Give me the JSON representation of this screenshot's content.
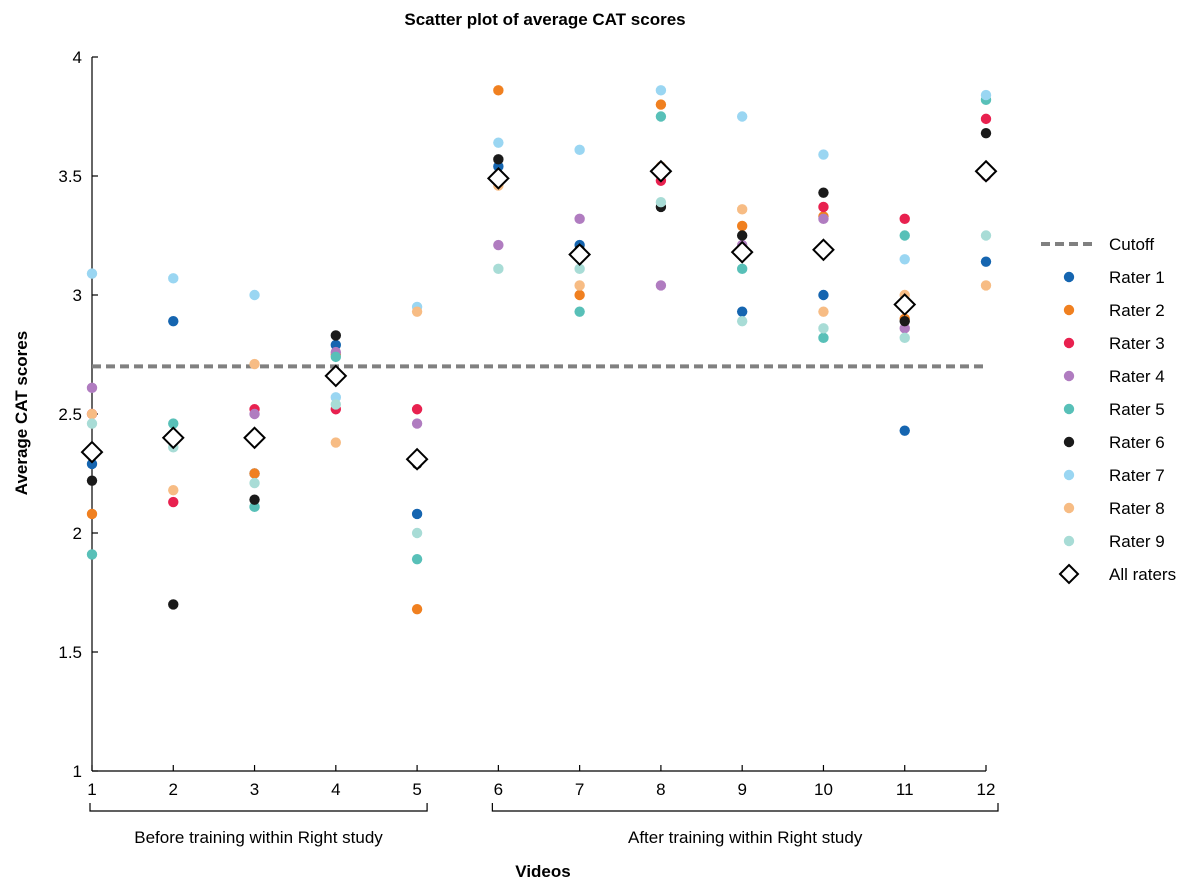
{
  "chart_data": {
    "type": "scatter",
    "title": "Scatter plot of average CAT scores",
    "xlabel": "Videos",
    "ylabel": "Average CAT scores",
    "x": [
      1,
      2,
      3,
      4,
      5,
      6,
      7,
      8,
      9,
      10,
      11,
      12
    ],
    "xticks": [
      "1",
      "2",
      "3",
      "4",
      "5",
      "6",
      "7",
      "8",
      "9",
      "10",
      "11",
      "12"
    ],
    "yticks": [
      "1",
      "1.5",
      "2",
      "2.5",
      "3",
      "3.5",
      "4"
    ],
    "xlim": [
      1,
      12
    ],
    "ylim": [
      1,
      4
    ],
    "grid": false,
    "legend_position": "right",
    "cutoff": {
      "name": "Cutoff",
      "value": 2.7,
      "color": "#808080"
    },
    "groups": [
      {
        "label": "Before training within Right study",
        "from": 1,
        "to": 5
      },
      {
        "label": "After training within Right study",
        "from": 6,
        "to": 12
      }
    ],
    "series": [
      {
        "name": "Rater 1",
        "color": "#1565B0",
        "values": [
          2.29,
          2.89,
          2.25,
          2.79,
          2.08,
          3.54,
          3.21,
          3.52,
          2.93,
          3.0,
          2.43,
          3.14
        ]
      },
      {
        "name": "Rater 2",
        "color": "#F08020",
        "values": [
          2.08,
          2.41,
          2.25,
          2.75,
          1.68,
          3.86,
          3.0,
          3.8,
          3.29,
          3.33,
          2.9,
          3.5
        ]
      },
      {
        "name": "Rater 3",
        "color": "#E8214F",
        "values": [
          2.5,
          2.13,
          2.52,
          2.52,
          2.52,
          3.5,
          3.18,
          3.48,
          3.18,
          3.37,
          3.32,
          3.74
        ]
      },
      {
        "name": "Rater 4",
        "color": "#B07CC0",
        "values": [
          2.61,
          2.4,
          2.5,
          2.76,
          2.46,
          3.21,
          3.32,
          3.04,
          3.21,
          3.32,
          2.86,
          3.5
        ]
      },
      {
        "name": "Rater 5",
        "color": "#58C0B8",
        "values": [
          1.91,
          2.46,
          2.11,
          2.74,
          1.89,
          3.5,
          2.93,
          3.75,
          3.11,
          2.82,
          3.25,
          3.82
        ]
      },
      {
        "name": "Rater 6",
        "color": "#1A1A1A",
        "values": [
          2.22,
          1.7,
          2.14,
          2.83,
          2.29,
          3.57,
          3.19,
          3.37,
          3.25,
          3.43,
          2.89,
          3.68
        ]
      },
      {
        "name": "Rater 7",
        "color": "#9AD6F2",
        "values": [
          3.09,
          3.07,
          3.0,
          2.57,
          2.95,
          3.64,
          3.61,
          3.86,
          3.75,
          3.59,
          3.15,
          3.84
        ]
      },
      {
        "name": "Rater 8",
        "color": "#F7BC84",
        "values": [
          2.5,
          2.18,
          2.71,
          2.38,
          2.93,
          3.46,
          3.04,
          3.54,
          3.36,
          2.93,
          3.0,
          3.04
        ]
      },
      {
        "name": "Rater 9",
        "color": "#A8DCD6",
        "values": [
          2.46,
          2.36,
          2.21,
          2.54,
          2.0,
          3.11,
          3.11,
          3.39,
          2.89,
          2.86,
          2.82,
          3.25
        ]
      },
      {
        "name": "All raters",
        "marker": "diamond",
        "color": "#000000",
        "values": [
          2.34,
          2.4,
          2.4,
          2.66,
          2.31,
          3.49,
          3.17,
          3.52,
          3.18,
          3.19,
          2.96,
          3.52
        ]
      }
    ]
  }
}
